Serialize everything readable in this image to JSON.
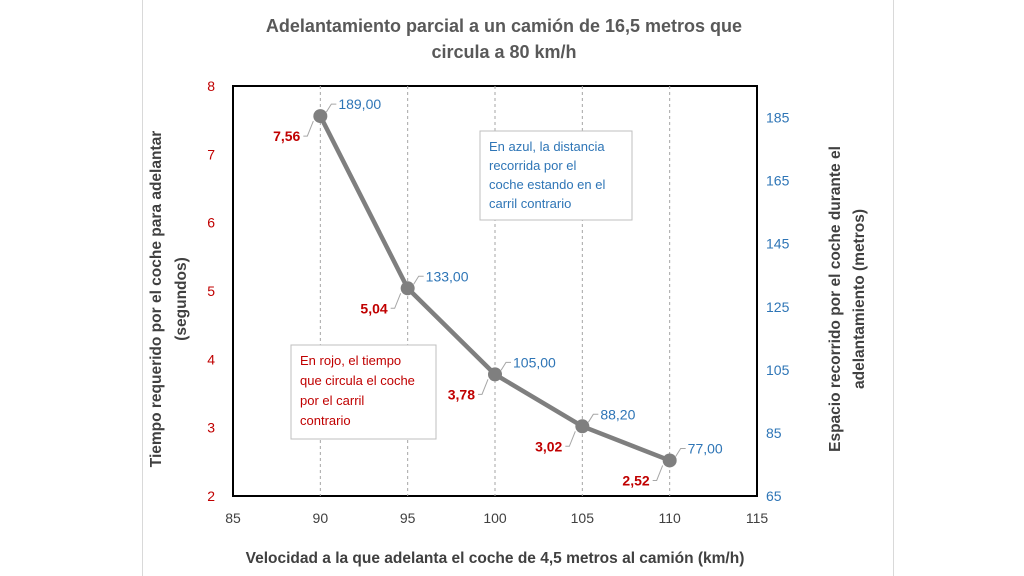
{
  "chart_data": {
    "type": "line",
    "title": [
      "Adelantamiento parcial a un camión de 16,5 metros que",
      "circula a 80 km/h"
    ],
    "xlabel": "Velocidad a la que adelanta el coche de 4,5 metros al camión (km/h)",
    "ylabel_left": [
      "Tiempo requerido por el coche para adelantar",
      "(segundos)"
    ],
    "ylabel_right": [
      "Espacio recorrido por el coche durante el",
      "adelantamiento (metros)"
    ],
    "xlim": [
      85,
      115
    ],
    "xticks": [
      "85",
      "90",
      "95",
      "100",
      "105",
      "110",
      "115"
    ],
    "ylim_left": [
      2,
      8
    ],
    "yticks_left": [
      "2",
      "3",
      "4",
      "5",
      "6",
      "7",
      "8"
    ],
    "ylim_right": [
      65,
      195
    ],
    "yticks_right": [
      "65",
      "85",
      "105",
      "125",
      "145",
      "165",
      "185"
    ],
    "grid": "vertical-dashed",
    "series": [
      {
        "x": [
          90,
          95,
          100,
          105,
          110
        ],
        "values": [
          7.56,
          5.04,
          3.78,
          3.02,
          2.52
        ],
        "labels": [
          "7,56",
          "5,04",
          "3,78",
          "3,02",
          "2,52"
        ],
        "color": "#7f7f7f"
      },
      {
        "x": [
          90,
          95,
          100,
          105,
          110
        ],
        "values": [
          189.0,
          133.0,
          105.0,
          88.2,
          77.0
        ],
        "labels": [
          "189,00",
          "133,00",
          "105,00",
          "88,20",
          "77,00"
        ],
        "color": "#2e75b6"
      }
    ],
    "annotations": {
      "blue_note": [
        "En azul, la distancia",
        "recorrida por el",
        "coche estando en el",
        "carril contrario"
      ],
      "red_note": [
        "En rojo, el tiempo",
        "que circula el coche",
        "por el carril",
        "contrario"
      ]
    }
  },
  "colors": {
    "line": "#7f7f7f",
    "red": "#c00000",
    "blue": "#2e75b6"
  }
}
